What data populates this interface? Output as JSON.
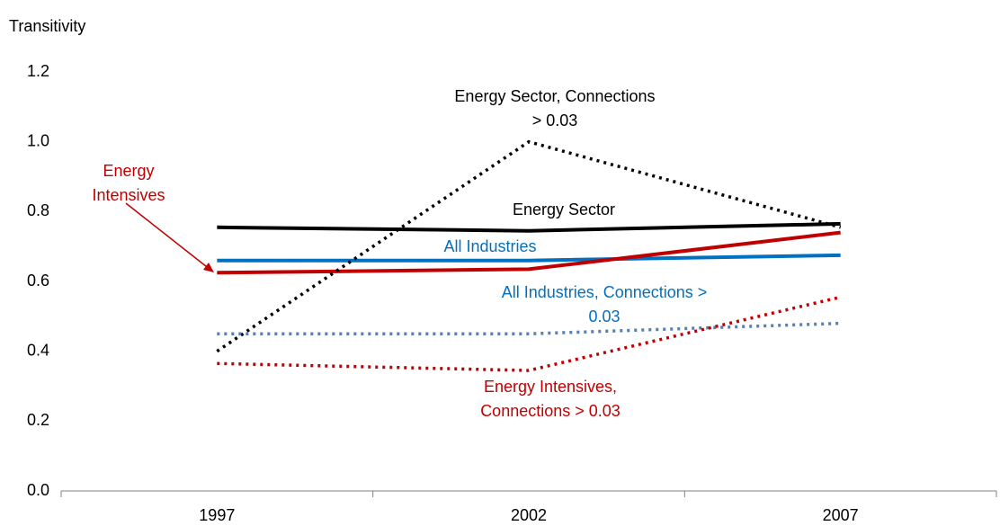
{
  "chart_data": {
    "type": "line",
    "y_label": "Transitivity",
    "categories": [
      "1997",
      "2002",
      "2007"
    ],
    "ylim": [
      0,
      1.2
    ],
    "yticks": [
      {
        "value": 0,
        "label": "0.0"
      },
      0.2,
      0.4,
      0.6,
      0.8,
      {
        "value": 1,
        "label": "1.0"
      },
      1.2
    ],
    "grid": false,
    "series": [
      {
        "name": "Energy Sector",
        "color": "#000000",
        "line_style": "solid",
        "values": [
          0.755,
          0.745,
          0.765
        ]
      },
      {
        "name": "All Industries",
        "color": "#0070c0",
        "line_style": "solid",
        "values": [
          0.66,
          0.66,
          0.675
        ]
      },
      {
        "name": "Energy Intensives",
        "color": "#c00000",
        "line_style": "solid",
        "values": [
          0.625,
          0.635,
          0.74
        ]
      },
      {
        "name": "Energy Sector, Connections > 0.03",
        "color": "#000000",
        "line_style": "dotted",
        "values": [
          0.4,
          1.0,
          0.755
        ]
      },
      {
        "name": "All Industries, Connections > 0.03",
        "color": "#4f81bd",
        "line_style": "dotted",
        "values": [
          0.45,
          0.45,
          0.48
        ]
      },
      {
        "name": "Energy Intensives, Connections > 0.03",
        "color": "#c00000",
        "line_style": "dotted",
        "values": [
          0.365,
          0.345,
          0.555
        ]
      }
    ]
  }
}
